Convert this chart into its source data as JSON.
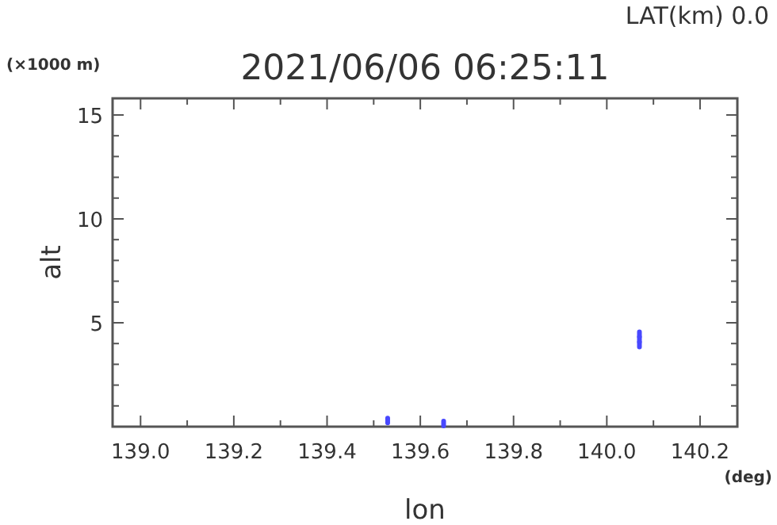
{
  "chart_data": {
    "type": "scatter",
    "title": "2021/06/06 06:25:11",
    "xlabel": "lon",
    "ylabel": "alt",
    "annotations": [
      "LAT(km) 0.0",
      "(×1000 m)",
      "(deg)"
    ],
    "series": [
      {
        "color": "#4848ff",
        "x": [
          139.53,
          139.65,
          140.07,
          140.07,
          140.07
        ],
        "values": [
          0.3,
          0.15,
          3.95,
          4.2,
          4.45
        ]
      }
    ],
    "xlim": [
      138.94,
      140.28
    ],
    "xticks": [
      {
        "value": 139.0,
        "label": "139.0"
      },
      {
        "value": 139.1,
        "label": null
      },
      {
        "value": 139.2,
        "label": "139.2"
      },
      {
        "value": 139.3,
        "label": null
      },
      {
        "value": 139.4,
        "label": "139.4"
      },
      {
        "value": 139.5,
        "label": null
      },
      {
        "value": 139.6,
        "label": "139.6"
      },
      {
        "value": 139.7,
        "label": null
      },
      {
        "value": 139.8,
        "label": "139.8"
      },
      {
        "value": 139.9,
        "label": null
      },
      {
        "value": 140.0,
        "label": "140.0"
      },
      {
        "value": 140.1,
        "label": null
      },
      {
        "value": 140.2,
        "label": "140.2"
      }
    ],
    "ylim": [
      0,
      15.8
    ],
    "yticks": [
      {
        "value": 1,
        "label": null
      },
      {
        "value": 2,
        "label": null
      },
      {
        "value": 3,
        "label": null
      },
      {
        "value": 4,
        "label": null
      },
      5,
      {
        "value": 6,
        "label": null
      },
      {
        "value": 7,
        "label": null
      },
      {
        "value": 8,
        "label": null
      },
      {
        "value": 9,
        "label": null
      },
      10,
      {
        "value": 11,
        "label": null
      },
      {
        "value": 12,
        "label": null
      },
      {
        "value": 13,
        "label": null
      },
      {
        "value": 14,
        "label": null
      },
      15
    ],
    "grid": false
  }
}
